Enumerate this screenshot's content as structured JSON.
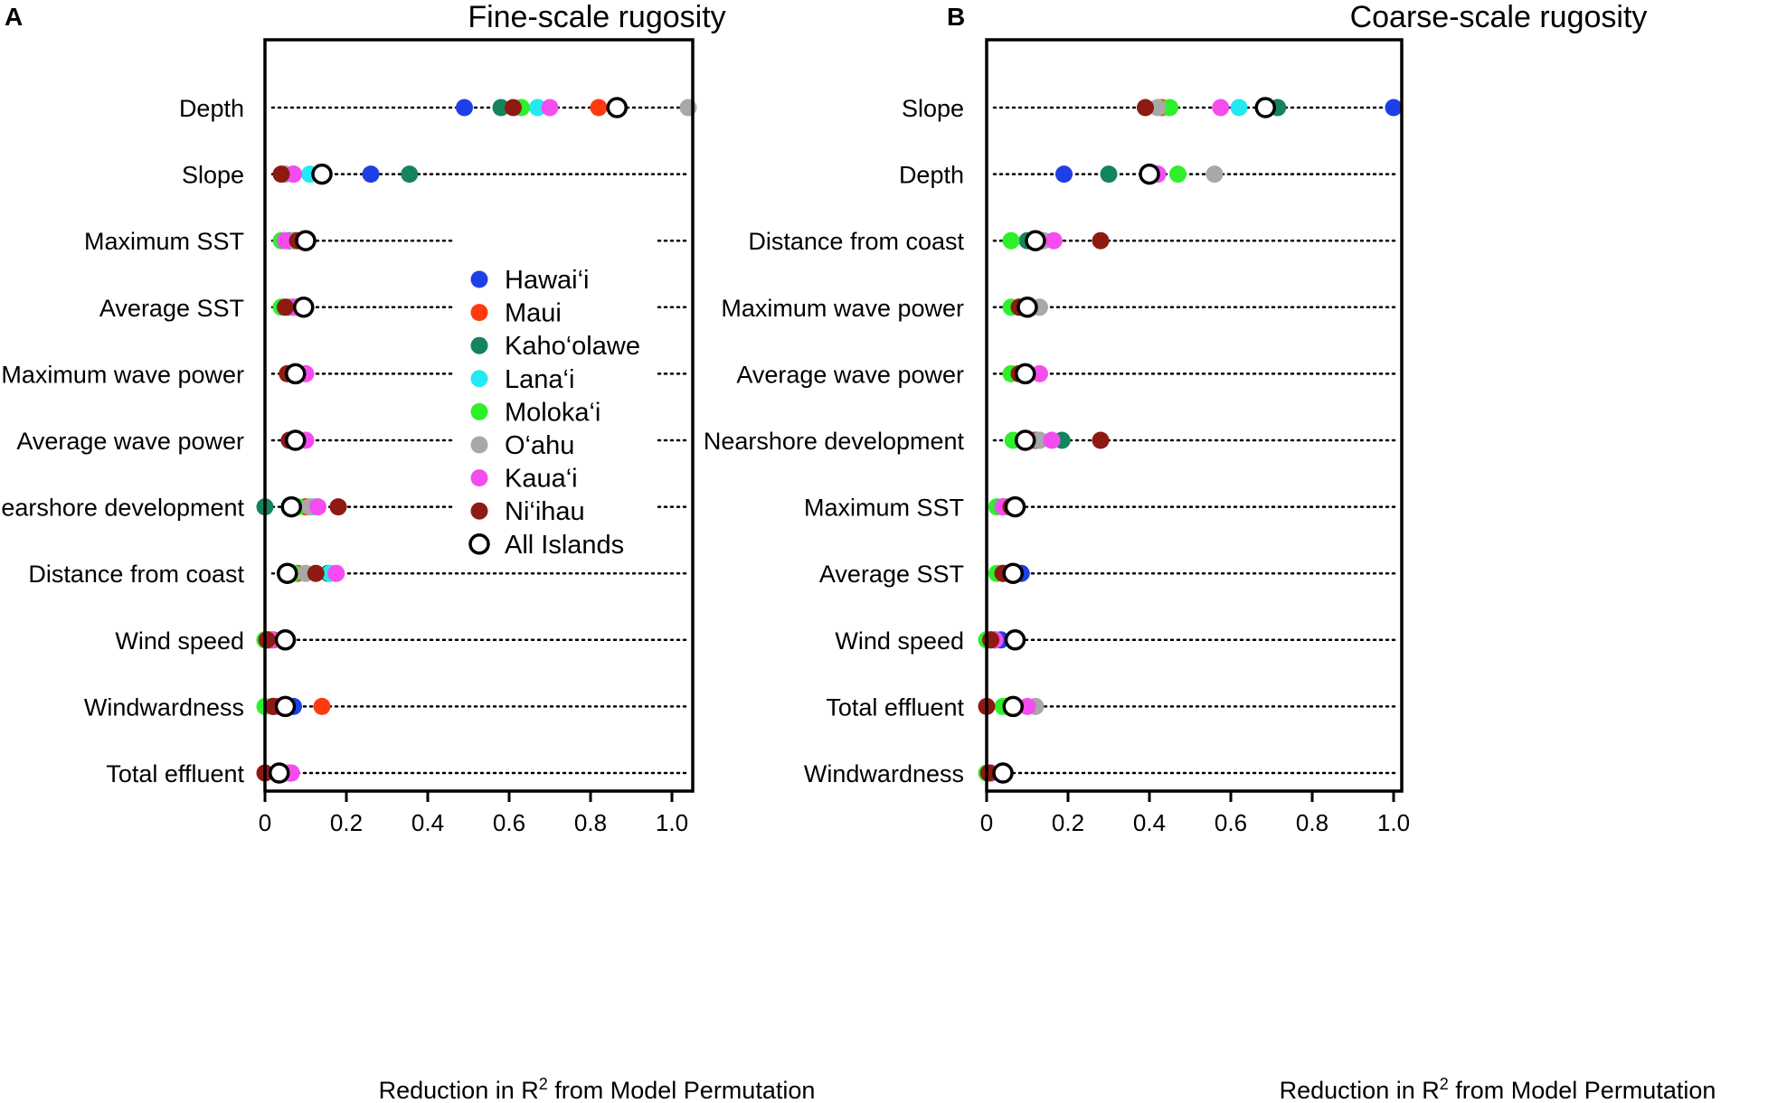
{
  "figure": {
    "panels": [
      {
        "letter": "A",
        "title": "Fine-scale rugosity"
      },
      {
        "letter": "B",
        "title": "Coarse-scale rugosity"
      }
    ],
    "xlabel_main": "Reduction in R",
    "xlabel_sup": "2",
    "xlabel_rest": " from Model Permutation"
  },
  "legend": {
    "items": [
      {
        "name": "Hawai‘i",
        "color": "#1f3fe6",
        "open": false
      },
      {
        "name": "Maui",
        "color": "#fe3a12",
        "open": false
      },
      {
        "name": "Kaho‘olawe",
        "color": "#13845d",
        "open": false
      },
      {
        "name": "Lana‘i",
        "color": "#25e9f0",
        "open": false
      },
      {
        "name": "Moloka‘i",
        "color": "#2ef02a",
        "open": false
      },
      {
        "name": "O‘ahu",
        "color": "#a8a8a8",
        "open": false
      },
      {
        "name": "Kaua‘i",
        "color": "#f54cf0",
        "open": false
      },
      {
        "name": "Ni‘ihau",
        "color": "#8e1a12",
        "open": false
      },
      {
        "name": "All Islands",
        "color": "#000000",
        "open": true
      }
    ]
  },
  "chart_data": [
    {
      "type": "scatter",
      "title": "Fine-scale rugosity",
      "panel": "A",
      "xlabel": "Reduction in R2 from Model Permutation",
      "xlim": [
        0,
        1.05
      ],
      "xticks": [
        0,
        0.2,
        0.4,
        0.6,
        0.8,
        1.0
      ],
      "xtick_labels": [
        "0",
        "0.2",
        "0.4",
        "0.6",
        "0.8",
        "1.0"
      ],
      "series_order": [
        "Hawai‘i",
        "Maui",
        "Kaho‘olawe",
        "Lana‘i",
        "Moloka‘i",
        "O‘ahu",
        "Kaua‘i",
        "Ni‘ihau",
        "All Islands"
      ],
      "categories": [
        "Depth",
        "Slope",
        "Maximum SST",
        "Average SST",
        "Maximum wave power",
        "Average wave power",
        "Nearshore development",
        "Distance from coast",
        "Wind speed",
        "Windwardness",
        "Total effluent"
      ],
      "values": [
        [
          0.49,
          0.82,
          0.58,
          0.67,
          0.63,
          1.04,
          0.7,
          0.61,
          0.865
        ],
        [
          0.26,
          0.07,
          0.355,
          0.11,
          0.05,
          0.05,
          0.07,
          0.04,
          0.14
        ],
        [
          0.07,
          0.09,
          0.06,
          0.05,
          0.04,
          0.07,
          0.05,
          0.08,
          0.1
        ],
        [
          0.09,
          0.08,
          0.06,
          0.07,
          0.04,
          0.06,
          0.07,
          0.05,
          0.095
        ],
        [
          0.07,
          0.08,
          0.06,
          0.07,
          0.06,
          0.07,
          0.1,
          0.055,
          0.075
        ],
        [
          0.06,
          0.07,
          0.06,
          0.07,
          0.07,
          0.08,
          0.1,
          0.06,
          0.075
        ],
        [
          0.1,
          0.1,
          0.0,
          0.12,
          0.08,
          0.11,
          0.13,
          0.18,
          0.065
        ],
        [
          0.07,
          0.08,
          0.155,
          0.16,
          0.07,
          0.1,
          0.175,
          0.125,
          0.055
        ],
        [
          0.01,
          0.02,
          0.0,
          0.01,
          0.0,
          0.01,
          0.015,
          0.005,
          0.05
        ],
        [
          0.07,
          0.14,
          0.02,
          0.03,
          0.0,
          0.03,
          0.03,
          0.02,
          0.05
        ],
        [
          0.04,
          0.06,
          0.03,
          0.04,
          0.03,
          0.05,
          0.065,
          0.0,
          0.035
        ]
      ]
    },
    {
      "type": "scatter",
      "title": "Coarse-scale rugosity",
      "panel": "B",
      "xlabel": "Reduction in R2 from Model Permutation",
      "xlim": [
        0,
        1.05
      ],
      "xticks": [
        0,
        0.2,
        0.4,
        0.6,
        0.8,
        1.0
      ],
      "xtick_labels": [
        "0",
        "0.2",
        "0.4",
        "0.6",
        "0.8",
        "1.0"
      ],
      "series_order": [
        "Hawai‘i",
        "Maui",
        "Kaho‘olawe",
        "Lana‘i",
        "Moloka‘i",
        "O‘ahu",
        "Kaua‘i",
        "Ni‘ihau",
        "All Islands"
      ],
      "categories": [
        "Slope",
        "Depth",
        "Distance from coast",
        "Maximum wave power",
        "Average wave power",
        "Nearshore development",
        "Maximum SST",
        "Average SST",
        "Wind speed",
        "Total effluent",
        "Windwardness"
      ],
      "values": [
        [
          1.0,
          0.43,
          0.715,
          0.62,
          0.45,
          0.42,
          0.575,
          0.39,
          0.685
        ],
        [
          0.19,
          0.42,
          0.3,
          0.42,
          0.47,
          0.56,
          0.42,
          0.4,
          0.4
        ],
        [
          0.11,
          0.13,
          0.1,
          0.12,
          0.06,
          0.14,
          0.165,
          0.28,
          0.12
        ],
        [
          0.1,
          0.1,
          0.08,
          0.09,
          0.06,
          0.13,
          0.1,
          0.08,
          0.1
        ],
        [
          0.1,
          0.1,
          0.08,
          0.09,
          0.06,
          0.1,
          0.13,
          0.08,
          0.095
        ],
        [
          0.12,
          0.11,
          0.185,
          0.13,
          0.065,
          0.13,
          0.16,
          0.28,
          0.095
        ],
        [
          0.05,
          0.06,
          0.04,
          0.05,
          0.025,
          0.05,
          0.04,
          0.06,
          0.07
        ],
        [
          0.085,
          0.06,
          0.04,
          0.05,
          0.025,
          0.05,
          0.05,
          0.04,
          0.065
        ],
        [
          0.035,
          0.02,
          0.01,
          0.02,
          0.0,
          0.02,
          0.02,
          0.01,
          0.07
        ],
        [
          0.06,
          0.07,
          0.05,
          0.07,
          0.04,
          0.12,
          0.1,
          0.0,
          0.065
        ],
        [
          0.01,
          0.01,
          0.01,
          0.01,
          0.0,
          0.01,
          0.01,
          0.005,
          0.04
        ]
      ]
    }
  ]
}
